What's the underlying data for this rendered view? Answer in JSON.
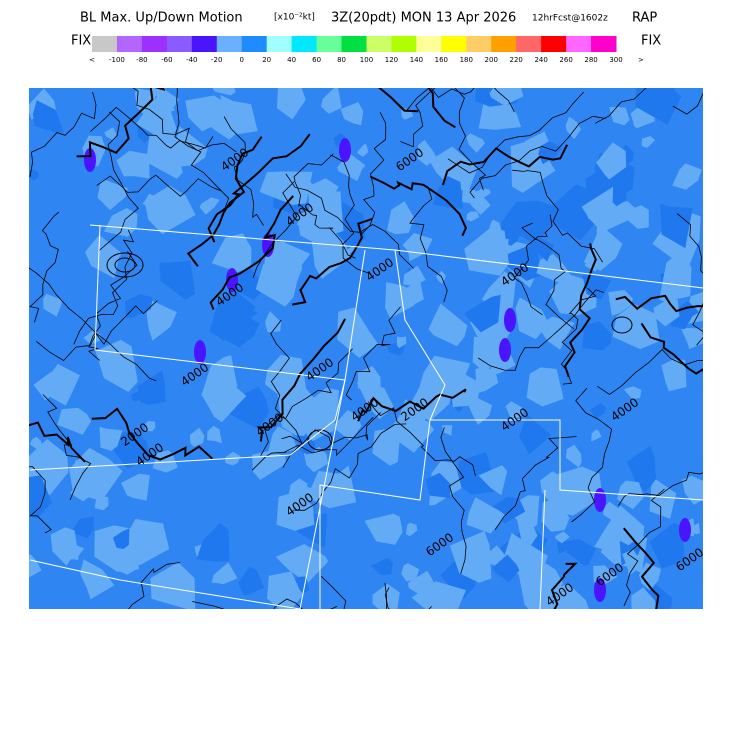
{
  "header": {
    "title": "BL Max. Up/Down Motion",
    "units": "[x10⁻²kt]",
    "time": "3Z(20pdt) MON 13 Apr 2026",
    "forecast": "12hrFcst@1602z",
    "model": "RAP"
  },
  "legend": {
    "left_label": "FIX",
    "right_label": "FIX",
    "colors": [
      "#c8c8c8",
      "#b266ff",
      "#9b30ff",
      "#8a5cff",
      "#4a14ff",
      "#6ab0ff",
      "#1e8cff",
      "#a0ffff",
      "#00e8ff",
      "#66ff99",
      "#00e040",
      "#ccff66",
      "#b0ff00",
      "#ffff99",
      "#ffff00",
      "#ffcc66",
      "#ff9f00",
      "#ff6666",
      "#ff0000",
      "#ff66ff",
      "#ff00cc"
    ],
    "labels": [
      "<",
      "-100",
      "-80",
      "-60",
      "-40",
      "-20",
      "0",
      "20",
      "40",
      "60",
      "80",
      "100",
      "120",
      "140",
      "160",
      "180",
      "200",
      "220",
      "240",
      "260",
      "280",
      "300",
      ">"
    ]
  },
  "map": {
    "contour_labels": [
      "4000",
      "4000",
      "4000",
      "6000",
      "4000",
      "4000",
      "4000",
      "2000",
      "4000",
      "4000",
      "4000",
      "4000",
      "2000",
      "4000",
      "4000",
      "6000",
      "4000",
      "6000",
      "6000",
      "4000"
    ]
  }
}
